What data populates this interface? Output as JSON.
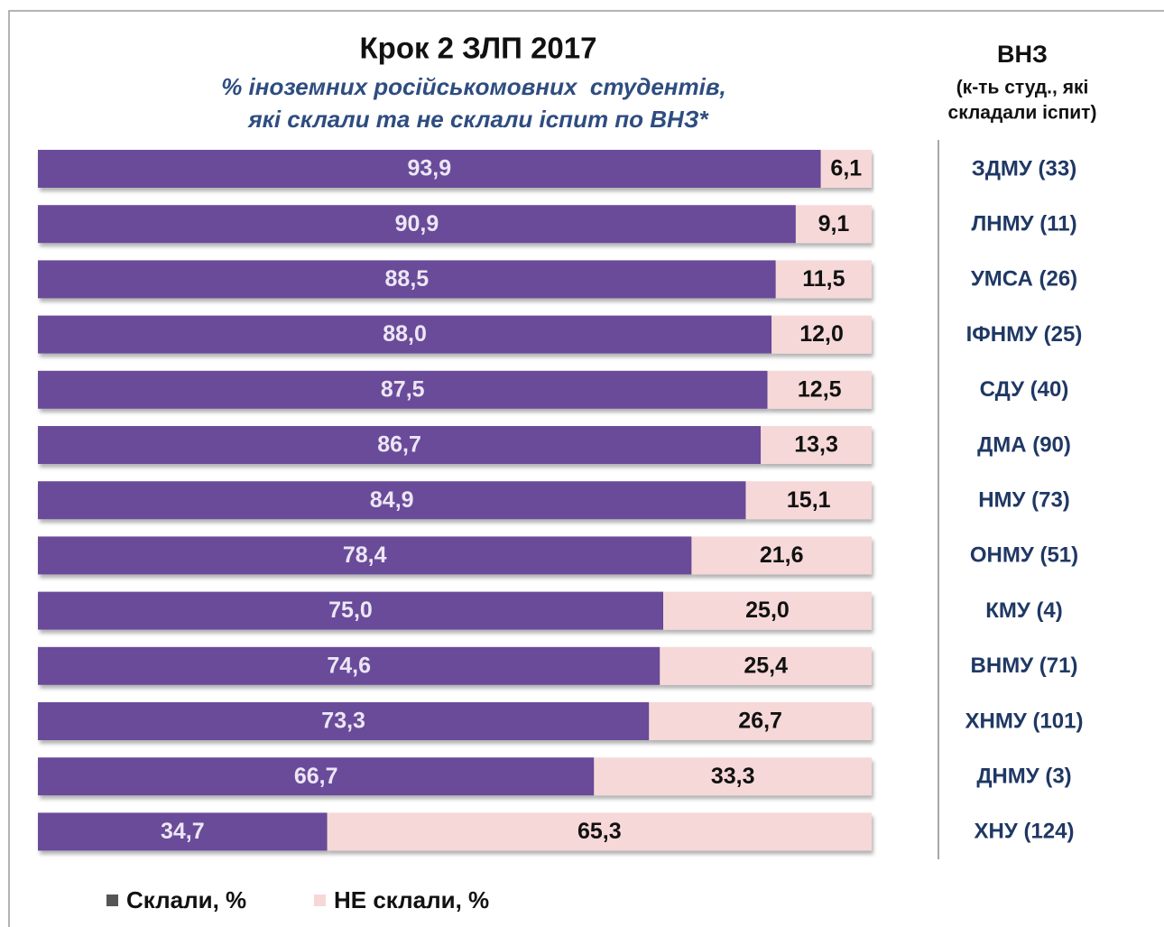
{
  "chart_data": {
    "type": "bar",
    "orientation": "horizontal",
    "stacked": true,
    "title": "Крок 2 ЗЛП 2017",
    "subtitle": [
      "% іноземних російськомовних  студентів,",
      "які склали та не склали іспит по ВНЗ*"
    ],
    "category_header": [
      "ВНЗ",
      "(к-ть студ., які",
      "складали іспит)"
    ],
    "categories": [
      "ЗДМУ (33)",
      "ЛНМУ (11)",
      "УМСА (26)",
      "ІФНМУ (25)",
      "СДУ (40)",
      "ДМА (90)",
      "НМУ (73)",
      "ОНМУ (51)",
      "КМУ (4)",
      "ВНМУ (71)",
      "ХНМУ (101)",
      "ДНМУ (3)",
      "ХНУ (124)"
    ],
    "xlim": [
      0,
      100
    ],
    "series": [
      {
        "name": "Склали, %",
        "color": "#6b4c9a",
        "label_color": "#ece6f4",
        "values": [
          93.9,
          90.9,
          88.5,
          88.0,
          87.5,
          86.7,
          84.9,
          78.4,
          75.0,
          74.6,
          73.3,
          66.7,
          34.7
        ],
        "value_labels": [
          "93,9",
          "90,9",
          "88,5",
          "88,0",
          "87,5",
          "86,7",
          "84,9",
          "78,4",
          "75,0",
          "74,6",
          "73,3",
          "66,7",
          "34,7"
        ]
      },
      {
        "name": "НЕ склали, %",
        "color": "#f6d8d8",
        "label_color": "#111111",
        "values": [
          6.1,
          9.1,
          11.5,
          12.0,
          12.5,
          13.3,
          15.1,
          21.6,
          25.0,
          25.4,
          26.7,
          33.3,
          65.3
        ],
        "value_labels": [
          "6,1",
          "9,1",
          "11,5",
          "12,0",
          "12,5",
          "13,3",
          "15,1",
          "21,6",
          "25,0",
          "25,4",
          "26,7",
          "33,3",
          "65,3"
        ]
      }
    ]
  }
}
